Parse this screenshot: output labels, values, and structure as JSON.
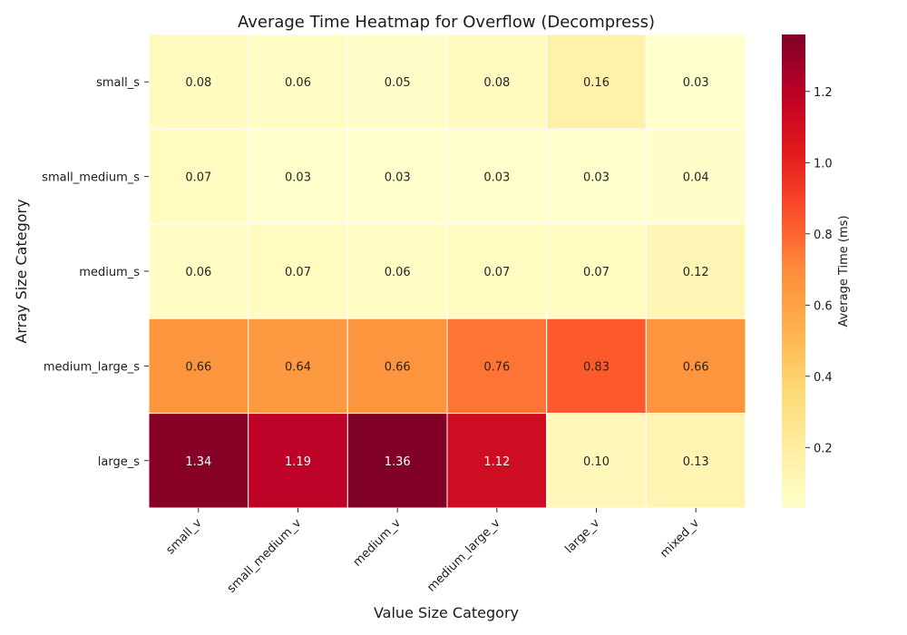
{
  "chart_data": {
    "type": "heatmap",
    "title": "Average Time Heatmap for Overflow (Decompress)",
    "xlabel": "Value Size Category",
    "ylabel": "Array Size Category",
    "x_categories": [
      "small_v",
      "small_medium_v",
      "medium_v",
      "medium_large_v",
      "large_v",
      "mixed_v"
    ],
    "y_categories": [
      "small_s",
      "small_medium_s",
      "medium_s",
      "medium_large_s",
      "large_s"
    ],
    "values": [
      [
        0.08,
        0.06,
        0.05,
        0.08,
        0.16,
        0.03
      ],
      [
        0.07,
        0.03,
        0.03,
        0.03,
        0.03,
        0.04
      ],
      [
        0.06,
        0.07,
        0.06,
        0.07,
        0.07,
        0.12
      ],
      [
        0.66,
        0.64,
        0.66,
        0.76,
        0.83,
        0.66
      ],
      [
        1.34,
        1.19,
        1.36,
        1.12,
        0.1,
        0.13
      ]
    ],
    "colorbar": {
      "label": "Average Time (ms)",
      "range": [
        0.03,
        1.36
      ],
      "ticks": [
        0.2,
        0.4,
        0.6,
        0.8,
        1.0,
        1.2
      ],
      "tick_labels": [
        "0.2",
        "0.4",
        "0.6",
        "0.8",
        "1.0",
        "1.2"
      ],
      "colormap": "YlOrRd"
    },
    "value_format_decimals": 2
  }
}
